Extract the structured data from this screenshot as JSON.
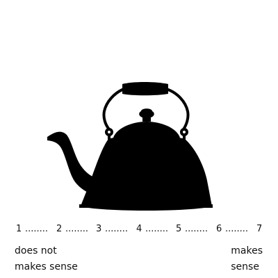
{
  "stimulus": {
    "image": "kettle-silhouette",
    "image_color": "#000000",
    "background_color": "#ffffff"
  },
  "scale": {
    "points": [
      "1",
      "2",
      "3",
      "4",
      "5",
      "6",
      "7"
    ],
    "separator": "........",
    "left_anchor": [
      "does not",
      "makes sense"
    ],
    "right_anchor": [
      "makes",
      "sense"
    ]
  }
}
